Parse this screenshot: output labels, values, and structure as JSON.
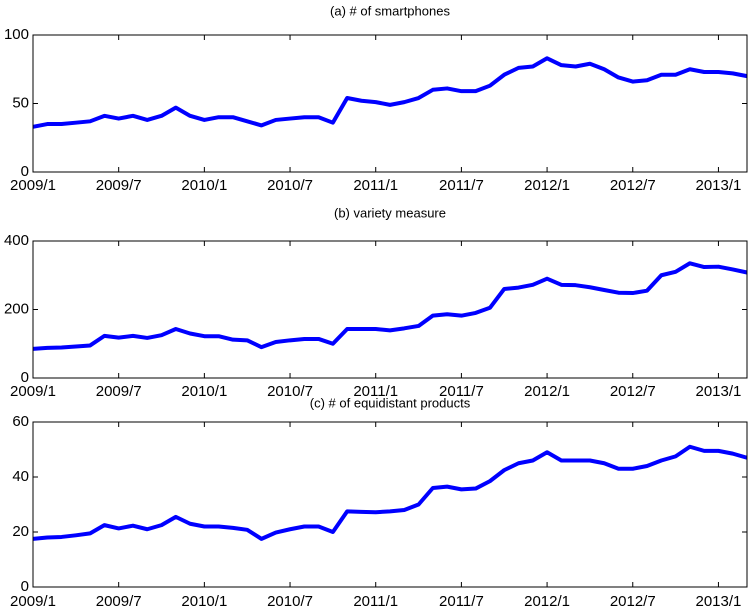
{
  "chart_data": [
    {
      "type": "line",
      "title": "(a) # of smartphones",
      "categories": [
        "2009/1",
        null,
        null,
        null,
        null,
        null,
        "2009/7",
        null,
        null,
        null,
        null,
        null,
        "2010/1",
        null,
        null,
        null,
        null,
        null,
        "2010/7",
        null,
        null,
        null,
        null,
        null,
        "2011/1",
        null,
        null,
        null,
        null,
        null,
        "2011/7",
        null,
        null,
        null,
        null,
        null,
        "2012/1",
        null,
        null,
        null,
        null,
        null,
        "2012/7",
        null,
        null,
        null,
        null,
        null,
        "2013/1",
        null,
        null
      ],
      "values": [
        33,
        35,
        35,
        36,
        37,
        41,
        39,
        41,
        38,
        41,
        47,
        41,
        38,
        40,
        40,
        37,
        34,
        38,
        39,
        40,
        40,
        36,
        54,
        52,
        51,
        49,
        51,
        54,
        60,
        61,
        59,
        59,
        63,
        71,
        76,
        77,
        83,
        78,
        77,
        79,
        75,
        69,
        66,
        67,
        71,
        71,
        75,
        73,
        73,
        72,
        70
      ],
      "color": "#0000ff",
      "ylim": [
        0,
        100
      ],
      "yticks": [
        0,
        50,
        100
      ]
    },
    {
      "type": "line",
      "title": "(b) variety measure",
      "categories": [
        "2009/1",
        null,
        null,
        null,
        null,
        null,
        "2009/7",
        null,
        null,
        null,
        null,
        null,
        "2010/1",
        null,
        null,
        null,
        null,
        null,
        "2010/7",
        null,
        null,
        null,
        null,
        null,
        "2011/1",
        null,
        null,
        null,
        null,
        null,
        "2011/7",
        null,
        null,
        null,
        null,
        null,
        "2012/1",
        null,
        null,
        null,
        null,
        null,
        "2012/7",
        null,
        null,
        null,
        null,
        null,
        "2013/1",
        null,
        null
      ],
      "values": [
        85,
        88,
        89,
        92,
        95,
        123,
        118,
        123,
        117,
        125,
        143,
        130,
        122,
        122,
        112,
        110,
        90,
        105,
        110,
        114,
        114,
        100,
        143,
        143,
        143,
        139,
        145,
        152,
        182,
        186,
        182,
        190,
        205,
        260,
        264,
        272,
        290,
        272,
        271,
        265,
        257,
        249,
        248,
        255,
        300,
        310,
        335,
        324,
        325,
        317,
        308
      ],
      "color": "#0000ff",
      "ylim": [
        0,
        400
      ],
      "yticks": [
        0,
        200,
        400
      ]
    },
    {
      "type": "line",
      "title": "(c) # of equidistant products",
      "categories": [
        "2009/1",
        null,
        null,
        null,
        null,
        null,
        "2009/7",
        null,
        null,
        null,
        null,
        null,
        "2010/1",
        null,
        null,
        null,
        null,
        null,
        "2010/7",
        null,
        null,
        null,
        null,
        null,
        "2011/1",
        null,
        null,
        null,
        null,
        null,
        "2011/7",
        null,
        null,
        null,
        null,
        null,
        "2012/1",
        null,
        null,
        null,
        null,
        null,
        "2012/7",
        null,
        null,
        null,
        null,
        null,
        "2013/1",
        null,
        null
      ],
      "values": [
        17.5,
        18,
        18.2,
        18.8,
        19.5,
        22.5,
        21.3,
        22.3,
        21,
        22.5,
        25.5,
        23,
        22,
        22,
        21.5,
        20.8,
        17.5,
        19.8,
        21,
        22,
        22,
        20,
        27.5,
        27.3,
        27.2,
        27.5,
        28,
        30,
        36,
        36.5,
        35.5,
        35.8,
        38.5,
        42.5,
        45,
        46,
        49,
        46,
        46,
        46,
        45,
        43,
        43,
        44,
        46,
        47.5,
        51,
        49.5,
        49.5,
        48.5,
        47
      ],
      "color": "#0000ff",
      "ylim": [
        0,
        60
      ],
      "yticks": [
        0,
        20,
        40,
        60
      ]
    }
  ]
}
